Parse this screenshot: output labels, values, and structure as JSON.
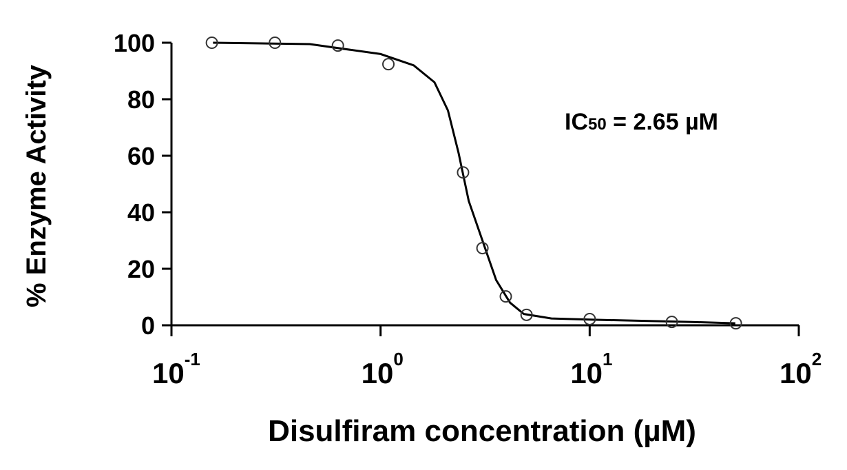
{
  "chart_data": {
    "type": "scatter",
    "xlabel": "Disulfiram concentration (µM)",
    "ylabel": "% Enzyme Activity",
    "annotation": {
      "prefix": "IC",
      "subscript": "50",
      "suffix": " = 2.65 µM"
    },
    "xscale": "log",
    "xlim": [
      0.1,
      100
    ],
    "ylim": [
      0,
      100
    ],
    "xticks": [
      {
        "value": 0.1,
        "label": "10",
        "exponent": "-1"
      },
      {
        "value": 1,
        "label": "10",
        "exponent": "0"
      },
      {
        "value": 10,
        "label": "10",
        "exponent": "1"
      },
      {
        "value": 100,
        "label": "10",
        "exponent": "2"
      }
    ],
    "yticks": [
      0,
      20,
      40,
      60,
      80,
      100
    ],
    "series": [
      {
        "type": "line",
        "color": "#000000",
        "x": [
          0.158,
          0.459,
          1.0,
          1.44,
          1.81,
          2.1,
          2.36,
          2.64,
          3.07,
          3.57,
          4.16,
          4.84,
          6.56,
          10,
          29.8,
          49.7
        ],
        "values": [
          100,
          99.5,
          96,
          92,
          86,
          76,
          61,
          44,
          30,
          16,
          8,
          4,
          2.4,
          2,
          1.2,
          0.7
        ]
      },
      {
        "type": "scatter",
        "color": "#333333",
        "x": [
          0.156,
          0.3125,
          0.625,
          1.09,
          2.48,
          3.07,
          3.97,
          4.99,
          10,
          24.7,
          50
        ],
        "values": [
          100,
          100,
          99,
          92.4,
          54.1,
          27.3,
          10.2,
          3.7,
          2.2,
          1.2,
          0.7
        ]
      }
    ]
  }
}
